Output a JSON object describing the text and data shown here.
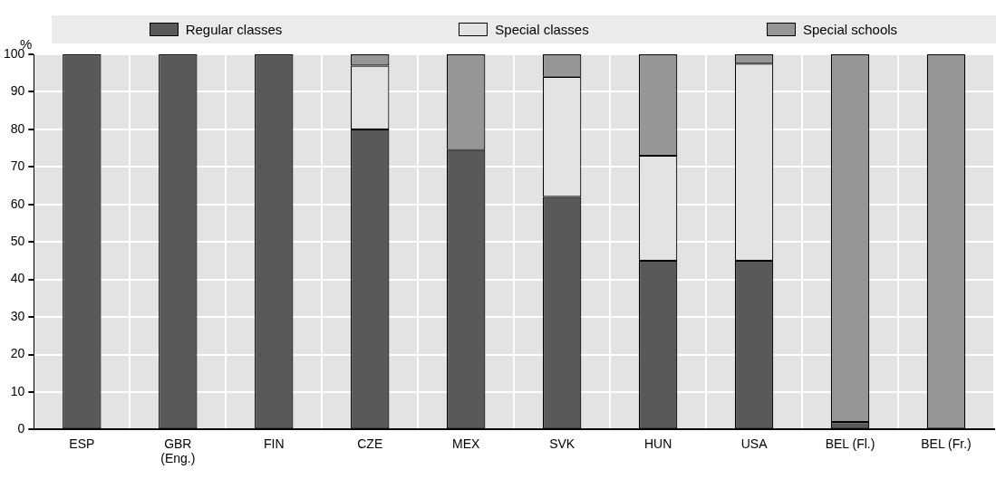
{
  "chart_data": {
    "type": "bar",
    "stacked": true,
    "ylabel": "%",
    "legend": "top",
    "categories": [
      "ESP",
      "GBR\n(Eng.)",
      "FIN",
      "CZE",
      "MEX",
      "SVK",
      "HUN",
      "USA",
      "BEL (Fl.)",
      "BEL (Fr.)"
    ],
    "series": [
      {
        "name": "Regular classes",
        "color": "#595959",
        "values": [
          100,
          100,
          100,
          80,
          74.5,
          62,
          45,
          45,
          2,
          0
        ]
      },
      {
        "name": "Special classes",
        "color": "#e3e3e3",
        "values": [
          0,
          0,
          0,
          17,
          0,
          32,
          28,
          52.5,
          0,
          0
        ]
      },
      {
        "name": "Special schools",
        "color": "#969696",
        "values": [
          0,
          0,
          0,
          3,
          25.5,
          6,
          27,
          2.5,
          98,
          100
        ]
      }
    ],
    "ylim": [
      0,
      100
    ],
    "yticks": [
      0,
      10,
      20,
      30,
      40,
      50,
      60,
      70,
      80,
      90,
      100
    ],
    "grid": true
  }
}
